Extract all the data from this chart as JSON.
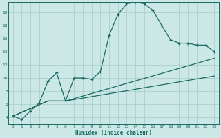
{
  "xlabel": "Humidex (Indice chaleur)",
  "bg_color": "#cce8e6",
  "grid_color": "#aad0cc",
  "line_color": "#1a6b60",
  "xmin": -0.5,
  "xmax": 23.5,
  "ymin": 3.0,
  "ymax": 21.5,
  "yticks": [
    4,
    6,
    8,
    10,
    12,
    14,
    16,
    18,
    20
  ],
  "xticks": [
    0,
    1,
    2,
    3,
    4,
    5,
    6,
    7,
    8,
    9,
    10,
    11,
    12,
    13,
    14,
    15,
    16,
    17,
    18,
    19,
    20,
    21,
    22,
    23
  ],
  "line1_x": [
    0,
    1,
    2,
    3,
    4,
    5,
    6,
    7,
    8,
    9,
    10,
    11,
    12,
    13,
    14,
    15,
    16,
    17,
    18,
    19,
    20,
    21,
    22,
    23
  ],
  "line1_y": [
    4.2,
    3.7,
    5.0,
    6.2,
    9.5,
    10.8,
    6.5,
    10.0,
    10.0,
    9.8,
    11.0,
    16.5,
    19.7,
    21.3,
    21.5,
    21.3,
    20.3,
    18.0,
    15.8,
    15.3,
    15.3,
    15.0,
    15.0,
    14.0
  ],
  "line2_x": [
    0,
    4,
    6,
    23
  ],
  "line2_y": [
    4.2,
    6.5,
    6.5,
    13.0
  ],
  "line3_x": [
    0,
    4,
    6,
    23
  ],
  "line3_y": [
    4.2,
    6.5,
    6.5,
    10.3
  ],
  "marker_x1": [
    0,
    1,
    2,
    3,
    4,
    5,
    6,
    7,
    8,
    9,
    10,
    11,
    12,
    13,
    14,
    15,
    16,
    17,
    18,
    19,
    20,
    21,
    22,
    23
  ],
  "marker_y1": [
    4.2,
    3.7,
    5.0,
    6.2,
    9.5,
    10.8,
    6.5,
    10.0,
    10.0,
    9.8,
    11.0,
    16.5,
    19.7,
    21.3,
    21.5,
    21.3,
    20.3,
    18.0,
    15.8,
    15.3,
    15.3,
    15.0,
    15.0,
    14.0
  ]
}
